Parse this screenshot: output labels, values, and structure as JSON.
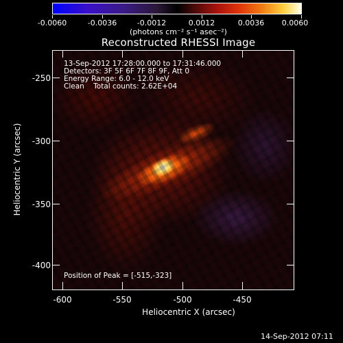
{
  "colorbar": {
    "tick_labels": [
      "-0.0060",
      "-0.0036",
      "-0.0012",
      "0.0012",
      "0.0036",
      "0.0060"
    ],
    "unit": "(photons cm⁻² s⁻¹ asec⁻²)",
    "range": [
      -0.006,
      0.006
    ]
  },
  "title": "Reconstructed RHESSI Image",
  "info": {
    "time_range": "13-Sep-2012 17:28:00.000 to 17:31:46.000",
    "detectors": "Detectors: 3F 5F 6F 7F 8F 9F, Att 0",
    "energy": "Energy Range: 6.0 - 12.0 keV",
    "clean": "Clean    Total counts: 2.62E+04"
  },
  "peak": "Position of Peak = [-515,-323]",
  "x_axis": {
    "title": "Heliocentric X (arcsec)",
    "ticks": [
      "-600",
      "-550",
      "-500",
      "-450"
    ],
    "range": [
      -615,
      -413
    ]
  },
  "y_axis": {
    "title": "Heliocentric Y (arcsec)",
    "ticks": [
      "-250",
      "-300",
      "-350",
      "-400"
    ],
    "range": [
      -423,
      -223
    ]
  },
  "timestamp": "14-Sep-2012 07:11",
  "colors": {
    "min": "#0000ff",
    "zero": "#000000",
    "max": "#ffffe8"
  }
}
